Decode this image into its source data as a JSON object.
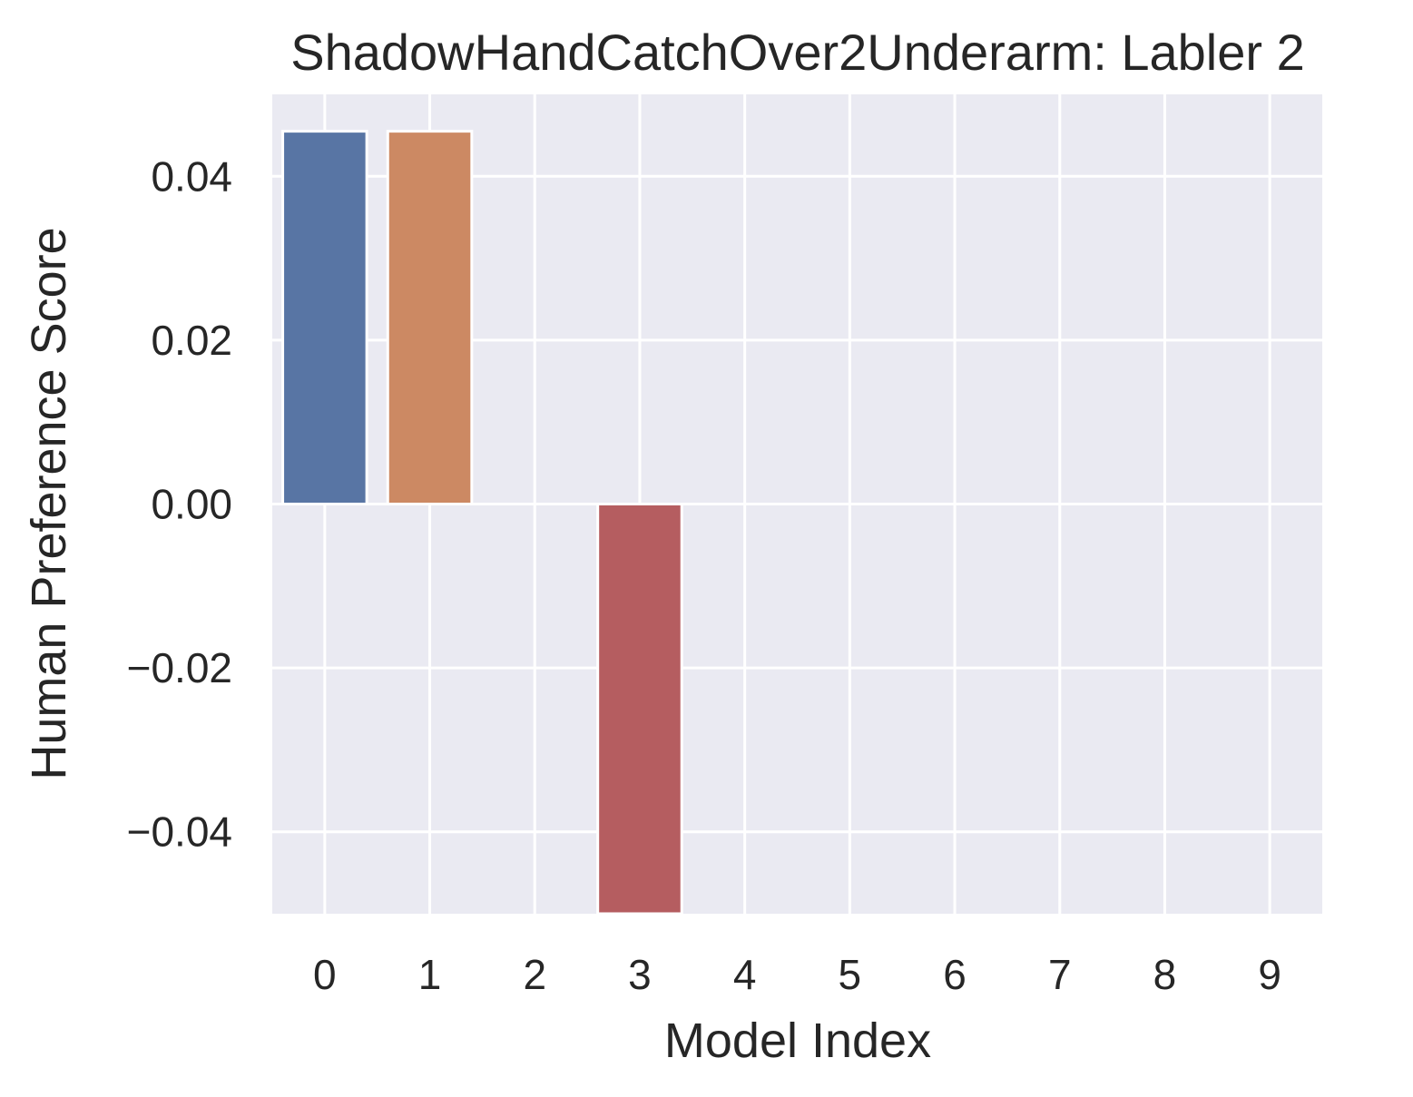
{
  "chart_data": {
    "type": "bar",
    "title": "ShadowHandCatchOver2Underarm: Labler 2",
    "xlabel": "Model Index",
    "ylabel": "Human Preference Score",
    "categories": [
      "0",
      "1",
      "2",
      "3",
      "4",
      "5",
      "6",
      "7",
      "8",
      "9"
    ],
    "values": [
      0.0455,
      0.0455,
      0,
      -0.05,
      0,
      0,
      0,
      0,
      0,
      0
    ],
    "colors": [
      "#5875a4",
      "#cc8963",
      "#5f9e6e",
      "#b55d60",
      "#857aab",
      "#8d7866",
      "#d095bf",
      "#8c8c8c",
      "#c1b37f",
      "#6fa5b7"
    ],
    "ylim": [
      -0.05,
      0.05
    ],
    "yticks": [
      -0.04,
      -0.02,
      0.0,
      0.02,
      0.04
    ],
    "ytick_labels": [
      "−0.04",
      "−0.02",
      "0.00",
      "0.02",
      "0.04"
    ],
    "grid": true,
    "background": "#eaeaf2"
  }
}
